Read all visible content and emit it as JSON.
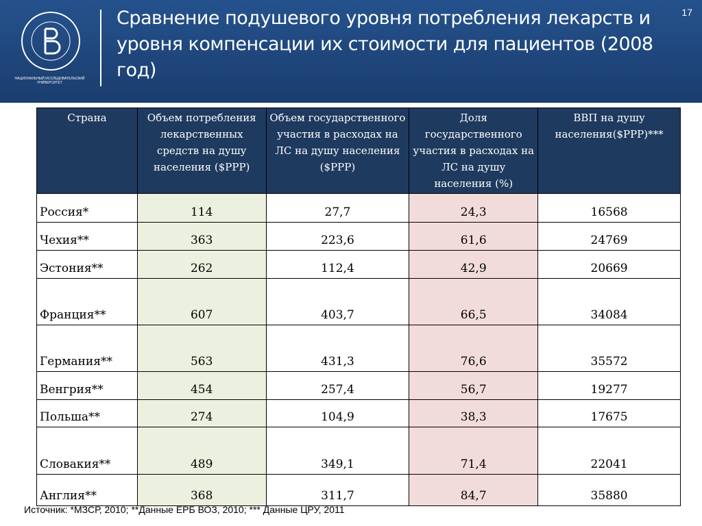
{
  "header": {
    "title": "Сравнение подушевого уровня потребления лекарств и уровня компенсации их стоимости для пациентов (2008 год)",
    "page_number": "17",
    "logo_caption": [
      "НАЦИОНАЛЬНЫЙ ИССЛЕДОВАТЕЛЬСКИЙ",
      "УНИВЕРСИТЕТ"
    ]
  },
  "table": {
    "columns": [
      "Страна",
      "Объем потребления лекарственных средств на душу населения ($PPP)",
      "Объем государственного участия в расходах на ЛС на душу населения ($PPP)",
      "Доля государственного участия в расходах на ЛС на душу населения (%)",
      "ВВП на душу населения($PPP)***"
    ],
    "rows": [
      [
        "Россия*",
        "114",
        "27,7",
        "24,3",
        "16568"
      ],
      [
        "Чехия**",
        "363",
        "223,6",
        "61,6",
        "24769"
      ],
      [
        "Эстония**",
        "262",
        "112,4",
        "42,9",
        "20669"
      ],
      [
        "Франция**",
        "607",
        "403,7",
        "66,5",
        "34084"
      ],
      [
        "Германия**",
        "563",
        "431,3",
        "76,6",
        "35572"
      ],
      [
        "Венгрия**",
        "454",
        "257,4",
        "56,7",
        "19277"
      ],
      [
        "Польша**",
        "274",
        "104,9",
        "38,3",
        "17675"
      ],
      [
        "Словакия**",
        "489",
        "349,1",
        "71,4",
        "22041"
      ],
      [
        "Англия**",
        "368",
        "311,7",
        "84,7",
        "35880"
      ]
    ]
  },
  "footer": {
    "source": "Источник: *МЗСР, 2010; **Данные ЕРБ ВОЗ, 2010; *** Данные ЦРУ, 2011"
  }
}
